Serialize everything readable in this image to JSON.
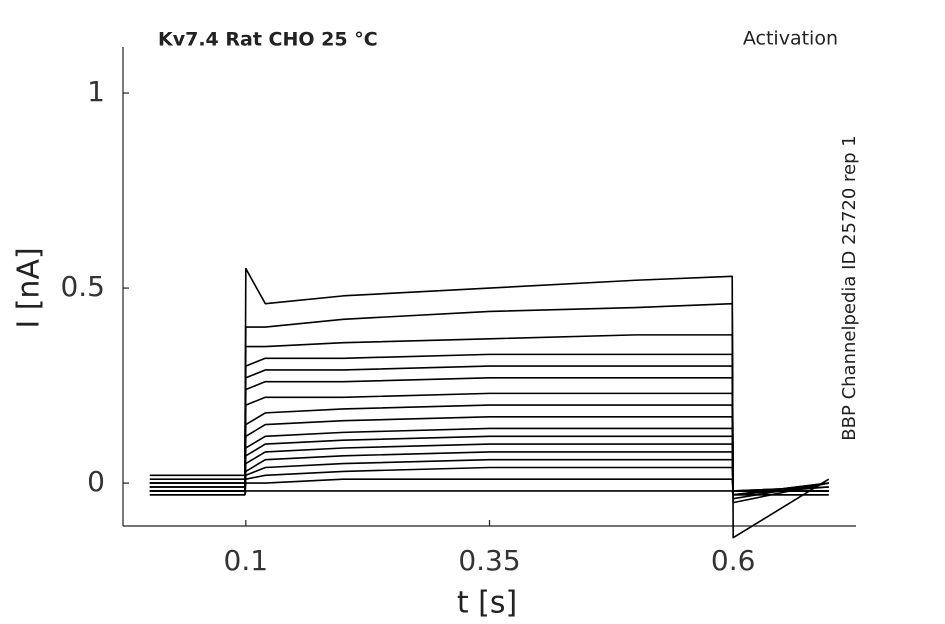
{
  "chart_data": {
    "type": "line",
    "title": "Kv7.4  Rat  CHO  25 °C",
    "subtitle": "Activation",
    "annotation": "BBP Channelpedia ID 25720 rep 1",
    "x_label": "t [s]",
    "y_label": "I [nA]",
    "x": [
      0.0015,
      0.099,
      0.1,
      0.12,
      0.2,
      0.35,
      0.5,
      0.599,
      0.6,
      0.698
    ],
    "xlim": [
      -0.026,
      0.726
    ],
    "xticks": [
      0.1,
      0.35,
      0.6
    ],
    "ylim": [
      -0.11,
      1.118
    ],
    "yticks": [
      0,
      0.5,
      1
    ],
    "grid": false,
    "series": [
      {
        "color": "#000000",
        "values": [
          0.02,
          0.02,
          0.55,
          0.46,
          0.48,
          0.5,
          0.52,
          0.53,
          -0.14,
          0.01
        ]
      },
      {
        "color": "#000000",
        "values": [
          0.01,
          0.01,
          0.4,
          0.4,
          0.42,
          0.44,
          0.45,
          0.46,
          -0.05,
          0
        ]
      },
      {
        "color": "#000000",
        "values": [
          0,
          0,
          0.35,
          0.35,
          0.36,
          0.37,
          0.38,
          0.38,
          -0.04,
          0
        ]
      },
      {
        "color": "#000000",
        "values": [
          0,
          0,
          0.3,
          0.32,
          0.32,
          0.33,
          0.33,
          0.33,
          -0.03,
          0
        ]
      },
      {
        "color": "#000000",
        "values": [
          0,
          0,
          0.27,
          0.29,
          0.29,
          0.3,
          0.3,
          0.3,
          -0.03,
          0
        ]
      },
      {
        "color": "#000000",
        "values": [
          -0.01,
          -0.01,
          0.24,
          0.26,
          0.26,
          0.27,
          0.27,
          0.27,
          -0.03,
          -0.01
        ]
      },
      {
        "color": "#000000",
        "values": [
          -0.01,
          -0.01,
          0.2,
          0.22,
          0.22,
          0.23,
          0.23,
          0.23,
          -0.02,
          -0.01
        ]
      },
      {
        "color": "#000000",
        "values": [
          -0.01,
          -0.01,
          0.15,
          0.18,
          0.19,
          0.2,
          0.2,
          0.2,
          -0.02,
          -0.01
        ]
      },
      {
        "color": "#000000",
        "values": [
          -0.02,
          -0.02,
          0.12,
          0.15,
          0.16,
          0.17,
          0.17,
          0.17,
          -0.02,
          -0.02
        ]
      },
      {
        "color": "#000000",
        "values": [
          -0.02,
          -0.02,
          0.09,
          0.12,
          0.13,
          0.14,
          0.14,
          0.14,
          -0.02,
          -0.02
        ]
      },
      {
        "color": "#000000",
        "values": [
          -0.02,
          -0.02,
          0.07,
          0.1,
          0.11,
          0.12,
          0.12,
          0.12,
          -0.02,
          -0.02
        ]
      },
      {
        "color": "#000000",
        "values": [
          -0.02,
          -0.02,
          0.05,
          0.08,
          0.09,
          0.1,
          0.1,
          0.1,
          -0.02,
          -0.02
        ]
      },
      {
        "color": "#000000",
        "values": [
          -0.02,
          -0.02,
          0.03,
          0.06,
          0.07,
          0.08,
          0.08,
          0.08,
          -0.02,
          -0.02
        ]
      },
      {
        "color": "#000000",
        "values": [
          -0.02,
          -0.02,
          0.02,
          0.04,
          0.05,
          0.06,
          0.06,
          0.06,
          -0.02,
          -0.02
        ]
      },
      {
        "color": "#000000",
        "values": [
          -0.02,
          -0.02,
          0.01,
          0.02,
          0.03,
          0.04,
          0.04,
          0.04,
          -0.02,
          -0.02
        ]
      },
      {
        "color": "#000000",
        "values": [
          -0.03,
          -0.03,
          0,
          0,
          0.01,
          0.01,
          0.01,
          0.01,
          -0.03,
          -0.03
        ]
      },
      {
        "color": "#000000",
        "values": [
          -0.03,
          -0.03,
          -0.02,
          -0.02,
          -0.02,
          -0.02,
          -0.02,
          -0.02,
          -0.03,
          -0.03
        ]
      }
    ]
  }
}
